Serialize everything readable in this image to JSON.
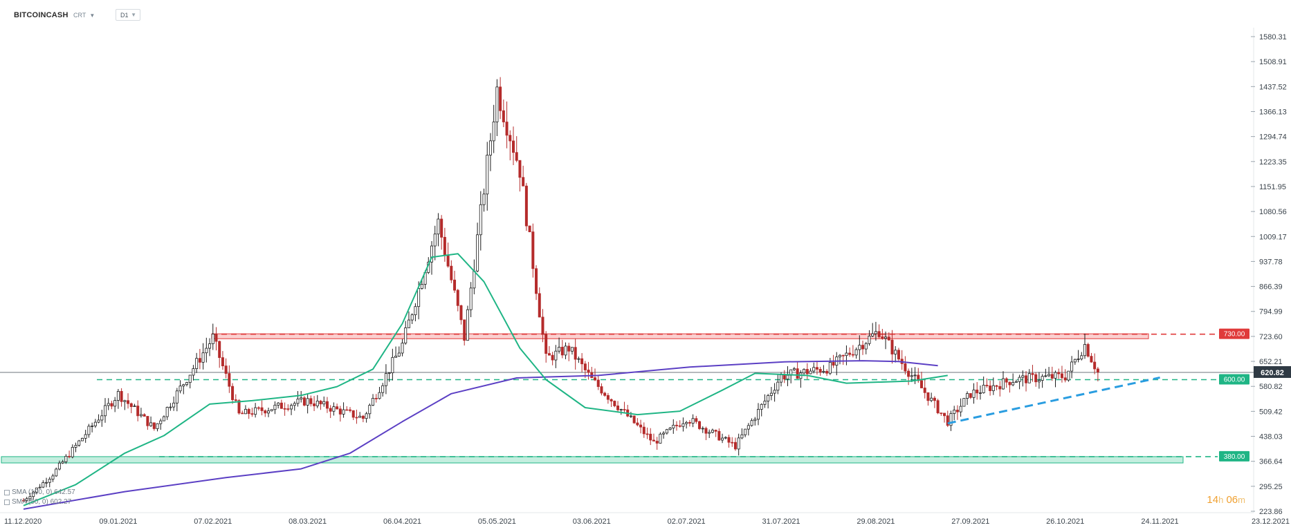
{
  "symbol": "BITCOINCASH",
  "chart_type_label": "CRT",
  "interval": "D1",
  "timer": {
    "hours": "14",
    "h_unit": "h",
    "minutes": "06",
    "m_unit": "m"
  },
  "legend": [
    {
      "label": "SMA (100, 0) 642.57",
      "color": "#5b3fc4"
    },
    {
      "label": "SMA (50, 0) 602.27",
      "color": "#1fb585"
    }
  ],
  "colors": {
    "up": "#1a1a1a",
    "down": "#b52b2b",
    "sma100": "#5b3fc4",
    "sma50": "#1fb585",
    "resistance": "#e03a3a",
    "support": "#1fb585",
    "trend": "#2a9de0",
    "last_price_badge": "#2f3a44"
  },
  "chart_data": {
    "type": "candlestick",
    "y_ticks": [
      "1580.31",
      "1508.91",
      "1437.52",
      "1366.13",
      "1294.74",
      "1223.35",
      "1151.95",
      "1080.56",
      "1009.17",
      "937.78",
      "866.39",
      "794.99",
      "723.60",
      "652.21",
      "580.82",
      "509.42",
      "438.03",
      "366.64",
      "295.25",
      "223.86"
    ],
    "x_ticks": [
      "11.12.2020",
      "09.01.2021",
      "07.02.2021",
      "08.03.2021",
      "06.04.2021",
      "05.05.2021",
      "03.06.2021",
      "02.07.2021",
      "31.07.2021",
      "29.08.2021",
      "27.09.2021",
      "26.10.2021",
      "24.11.2021",
      "23.12.2021"
    ],
    "last_price": "620.82",
    "levels": [
      {
        "label": "730.00",
        "value": 730,
        "kind": "resistance"
      },
      {
        "label": "600.00",
        "value": 600,
        "kind": "support"
      },
      {
        "label": "380.00",
        "value": 380,
        "kind": "support"
      }
    ],
    "zones": [
      {
        "from": 717,
        "to": 731,
        "kind": "resistance"
      },
      {
        "from": 362,
        "to": 380,
        "kind": "support"
      }
    ],
    "trendline": {
      "from": {
        "date": "20.09.2021",
        "value": 475
      },
      "to": {
        "date": "24.11.2021",
        "value": 606
      }
    },
    "key_points": [
      {
        "date": "11.12.2020",
        "value": 255
      },
      {
        "date": "20.12.2020",
        "value": 330
      },
      {
        "date": "09.01.2021",
        "value": 560
      },
      {
        "date": "20.01.2021",
        "value": 460
      },
      {
        "date": "07.02.2021",
        "value": 720
      },
      {
        "date": "15.02.2021",
        "value": 500
      },
      {
        "date": "08.03.2021",
        "value": 540
      },
      {
        "date": "25.03.2021",
        "value": 490
      },
      {
        "date": "06.04.2021",
        "value": 700
      },
      {
        "date": "17.04.2021",
        "value": 1050
      },
      {
        "date": "25.04.2021",
        "value": 720
      },
      {
        "date": "05.05.2021",
        "value": 1430
      },
      {
        "date": "12.05.2021",
        "value": 1200
      },
      {
        "date": "20.05.2021",
        "value": 660
      },
      {
        "date": "27.05.2021",
        "value": 690
      },
      {
        "date": "03.06.2021",
        "value": 600
      },
      {
        "date": "22.06.2021",
        "value": 420
      },
      {
        "date": "02.07.2021",
        "value": 490
      },
      {
        "date": "17.07.2021",
        "value": 410
      },
      {
        "date": "31.07.2021",
        "value": 610
      },
      {
        "date": "15.08.2021",
        "value": 635
      },
      {
        "date": "30.08.2021",
        "value": 740
      },
      {
        "date": "05.09.2021",
        "value": 660
      },
      {
        "date": "20.09.2021",
        "value": 480
      },
      {
        "date": "27.09.2021",
        "value": 560
      },
      {
        "date": "10.10.2021",
        "value": 600
      },
      {
        "date": "26.10.2021",
        "value": 610
      },
      {
        "date": "01.11.2021",
        "value": 700
      },
      {
        "date": "05.11.2021",
        "value": 621
      }
    ],
    "sma50": [
      [
        0,
        240
      ],
      [
        16,
        300
      ],
      [
        31,
        390
      ],
      [
        43,
        440
      ],
      [
        57,
        530
      ],
      [
        70,
        540
      ],
      [
        85,
        555
      ],
      [
        96,
        580
      ],
      [
        107,
        630
      ],
      [
        116,
        760
      ],
      [
        125,
        950
      ],
      [
        133,
        960
      ],
      [
        141,
        880
      ],
      [
        152,
        690
      ],
      [
        160,
        600
      ],
      [
        172,
        520
      ],
      [
        188,
        500
      ],
      [
        201,
        510
      ],
      [
        214,
        570
      ],
      [
        224,
        618
      ],
      [
        240,
        612
      ],
      [
        252,
        590
      ],
      [
        272,
        596
      ],
      [
        283,
        612
      ]
    ],
    "sma100": [
      [
        0,
        230
      ],
      [
        31,
        280
      ],
      [
        62,
        320
      ],
      [
        85,
        345
      ],
      [
        100,
        390
      ],
      [
        116,
        480
      ],
      [
        131,
        560
      ],
      [
        151,
        605
      ],
      [
        176,
        612
      ],
      [
        204,
        636
      ],
      [
        233,
        651
      ],
      [
        257,
        654
      ],
      [
        268,
        652
      ],
      [
        280,
        640
      ]
    ]
  }
}
